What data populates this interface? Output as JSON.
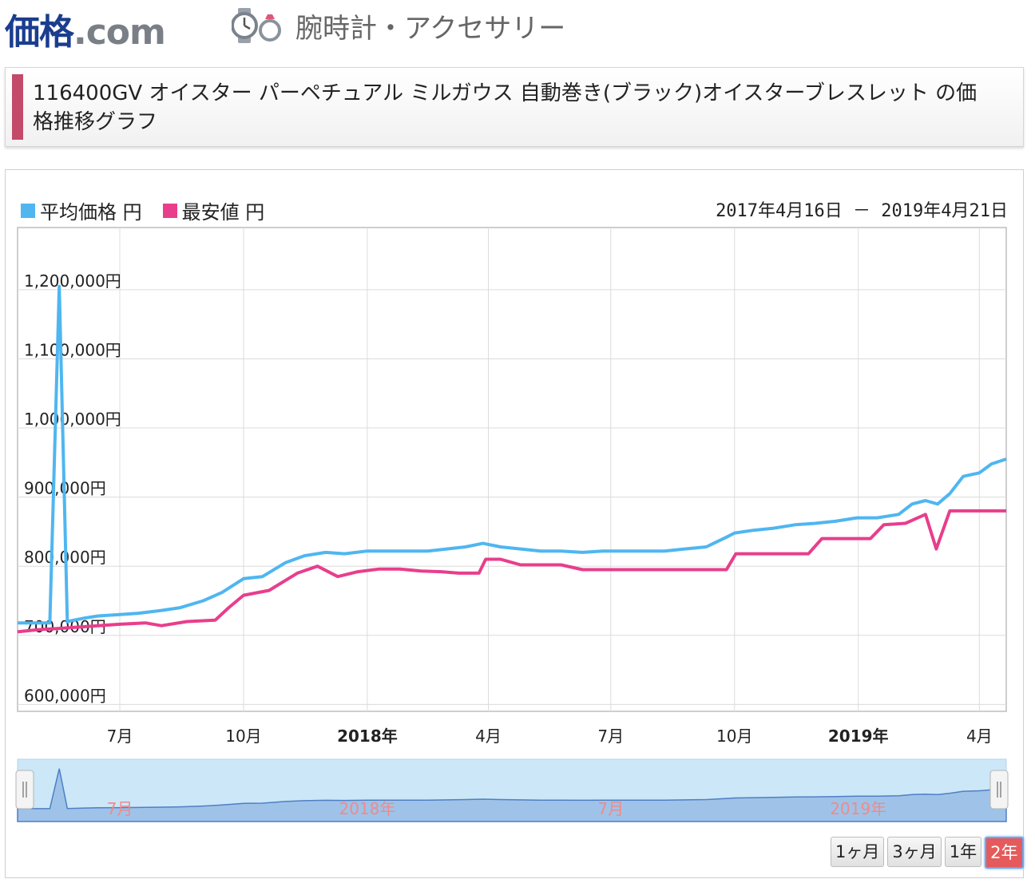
{
  "header": {
    "logo_main": "価格",
    "logo_suffix": ".com",
    "category_icon": "watch-ring-icon",
    "category_label": "腕時計・アクセサリー"
  },
  "page_title": "116400GV オイスター パーペチュアル ミルガウス 自動巻き(ブラック)オイスターブレスレット の価格推移グラフ",
  "legend": {
    "avg_label": "平均価格 円",
    "min_label": "最安値 円",
    "avg_color": "#4fb6f0",
    "min_color": "#e83e8c"
  },
  "date_range": "2017年4月16日 － 2019年4月21日",
  "range_buttons": [
    {
      "label": "1ヶ月",
      "active": false
    },
    {
      "label": "3ヶ月",
      "active": false
    },
    {
      "label": "1年",
      "active": false
    },
    {
      "label": "2年",
      "active": true
    }
  ],
  "chart_data": {
    "type": "line",
    "x_start": "2017-04-16",
    "x_end": "2019-04-21",
    "ylim": [
      590000,
      1290000
    ],
    "y_ticks": [
      600000,
      700000,
      800000,
      900000,
      1000000,
      1100000,
      1200000
    ],
    "y_tick_labels": [
      "600,000円",
      "700,000円",
      "800,000円",
      "900,000円",
      "1,000,000円",
      "1,100,000円",
      "1,200,000円"
    ],
    "x_tick_labels": [
      {
        "date": "2017-07-01",
        "label": "7月",
        "bold": false
      },
      {
        "date": "2017-10-01",
        "label": "10月",
        "bold": false
      },
      {
        "date": "2018-01-01",
        "label": "2018年",
        "bold": true
      },
      {
        "date": "2018-04-01",
        "label": "4月",
        "bold": false
      },
      {
        "date": "2018-07-01",
        "label": "7月",
        "bold": false
      },
      {
        "date": "2018-10-01",
        "label": "10月",
        "bold": false
      },
      {
        "date": "2019-01-01",
        "label": "2019年",
        "bold": true
      },
      {
        "date": "2019-04-01",
        "label": "4月",
        "bold": false
      }
    ],
    "navigator_labels": [
      {
        "date": "2017-07-01",
        "label": "7月"
      },
      {
        "date": "2018-01-01",
        "label": "2018年"
      },
      {
        "date": "2018-07-01",
        "label": "7月"
      },
      {
        "date": "2019-01-01",
        "label": "2019年"
      }
    ],
    "grid": true,
    "legend_position": "top-left",
    "series": [
      {
        "name": "平均価格",
        "color": "#4fb6f0",
        "points": [
          [
            "2017-04-16",
            718000
          ],
          [
            "2017-05-10",
            718000
          ],
          [
            "2017-05-17",
            1205000
          ],
          [
            "2017-05-23",
            720000
          ],
          [
            "2017-06-05",
            725000
          ],
          [
            "2017-06-15",
            728000
          ],
          [
            "2017-07-01",
            730000
          ],
          [
            "2017-07-15",
            732000
          ],
          [
            "2017-08-01",
            736000
          ],
          [
            "2017-08-15",
            740000
          ],
          [
            "2017-09-01",
            750000
          ],
          [
            "2017-09-15",
            762000
          ],
          [
            "2017-10-01",
            782000
          ],
          [
            "2017-10-15",
            785000
          ],
          [
            "2017-11-01",
            805000
          ],
          [
            "2017-11-15",
            815000
          ],
          [
            "2017-12-01",
            820000
          ],
          [
            "2017-12-15",
            818000
          ],
          [
            "2018-01-01",
            822000
          ],
          [
            "2018-01-15",
            822000
          ],
          [
            "2018-02-01",
            822000
          ],
          [
            "2018-02-15",
            822000
          ],
          [
            "2018-03-01",
            825000
          ],
          [
            "2018-03-15",
            828000
          ],
          [
            "2018-03-28",
            833000
          ],
          [
            "2018-04-10",
            828000
          ],
          [
            "2018-04-25",
            825000
          ],
          [
            "2018-05-10",
            822000
          ],
          [
            "2018-05-25",
            822000
          ],
          [
            "2018-06-10",
            820000
          ],
          [
            "2018-06-25",
            822000
          ],
          [
            "2018-07-10",
            822000
          ],
          [
            "2018-07-25",
            822000
          ],
          [
            "2018-08-10",
            822000
          ],
          [
            "2018-08-25",
            825000
          ],
          [
            "2018-09-10",
            828000
          ],
          [
            "2018-09-25",
            842000
          ],
          [
            "2018-10-01",
            848000
          ],
          [
            "2018-10-15",
            852000
          ],
          [
            "2018-10-30",
            855000
          ],
          [
            "2018-11-15",
            860000
          ],
          [
            "2018-11-30",
            862000
          ],
          [
            "2018-12-15",
            865000
          ],
          [
            "2018-12-31",
            870000
          ],
          [
            "2019-01-15",
            870000
          ],
          [
            "2019-01-31",
            875000
          ],
          [
            "2019-02-10",
            890000
          ],
          [
            "2019-02-20",
            895000
          ],
          [
            "2019-03-01",
            890000
          ],
          [
            "2019-03-10",
            905000
          ],
          [
            "2019-03-20",
            930000
          ],
          [
            "2019-04-01",
            935000
          ],
          [
            "2019-04-10",
            948000
          ],
          [
            "2019-04-21",
            955000
          ]
        ]
      },
      {
        "name": "最安値",
        "color": "#e83e8c",
        "points": [
          [
            "2017-04-16",
            705000
          ],
          [
            "2017-05-01",
            708000
          ],
          [
            "2017-05-17",
            710000
          ],
          [
            "2017-06-01",
            712000
          ],
          [
            "2017-06-15",
            714000
          ],
          [
            "2017-07-01",
            716000
          ],
          [
            "2017-07-20",
            718000
          ],
          [
            "2017-08-01",
            714000
          ],
          [
            "2017-08-20",
            720000
          ],
          [
            "2017-09-10",
            722000
          ],
          [
            "2017-09-20",
            740000
          ],
          [
            "2017-10-01",
            758000
          ],
          [
            "2017-10-20",
            765000
          ],
          [
            "2017-11-10",
            790000
          ],
          [
            "2017-11-25",
            800000
          ],
          [
            "2017-12-10",
            785000
          ],
          [
            "2017-12-25",
            792000
          ],
          [
            "2018-01-10",
            796000
          ],
          [
            "2018-01-25",
            796000
          ],
          [
            "2018-02-10",
            793000
          ],
          [
            "2018-02-25",
            792000
          ],
          [
            "2018-03-10",
            790000
          ],
          [
            "2018-03-25",
            790000
          ],
          [
            "2018-03-30",
            810000
          ],
          [
            "2018-04-10",
            810000
          ],
          [
            "2018-04-25",
            802000
          ],
          [
            "2018-05-25",
            802000
          ],
          [
            "2018-06-10",
            795000
          ],
          [
            "2018-07-10",
            795000
          ],
          [
            "2018-08-10",
            795000
          ],
          [
            "2018-09-10",
            795000
          ],
          [
            "2018-09-25",
            795000
          ],
          [
            "2018-10-02",
            818000
          ],
          [
            "2018-10-30",
            818000
          ],
          [
            "2018-11-25",
            818000
          ],
          [
            "2018-12-05",
            840000
          ],
          [
            "2018-12-20",
            840000
          ],
          [
            "2019-01-10",
            840000
          ],
          [
            "2019-01-20",
            860000
          ],
          [
            "2019-02-05",
            862000
          ],
          [
            "2019-02-20",
            875000
          ],
          [
            "2019-02-28",
            825000
          ],
          [
            "2019-03-10",
            880000
          ],
          [
            "2019-04-21",
            880000
          ]
        ]
      }
    ]
  }
}
